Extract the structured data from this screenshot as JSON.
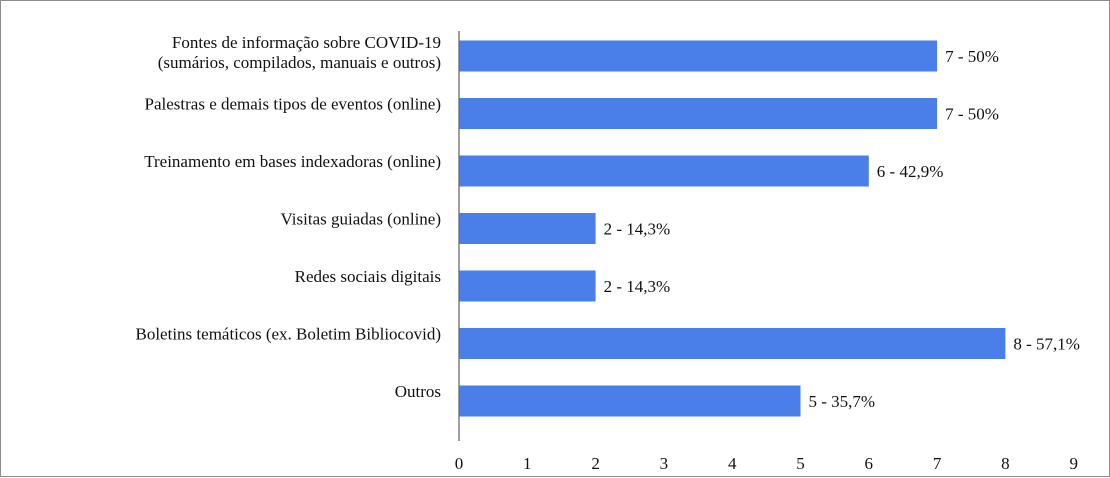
{
  "chart_data": {
    "type": "bar",
    "orientation": "horizontal",
    "categories": [
      [
        "Fontes de informação sobre COVID-19",
        "(sumários, compilados, manuais e outros)"
      ],
      [
        "Palestras e demais tipos de eventos (online)"
      ],
      [
        "Treinamento em bases indexadoras (online)"
      ],
      [
        "Visitas guiadas (online)"
      ],
      [
        "Redes sociais digitais"
      ],
      [
        "Boletins temáticos (ex. Boletim Bibliocovid)"
      ],
      [
        "Outros"
      ]
    ],
    "values": [
      7,
      7,
      6,
      2,
      2,
      8,
      5
    ],
    "data_labels": [
      "7 - 50%",
      "7 - 50%",
      "6 - 42,9%",
      "2 - 14,3%",
      "2 - 14,3%",
      "8 - 57,1%",
      "5 - 35,7%"
    ],
    "xlim": [
      0,
      9
    ],
    "xticks": [
      "0",
      "1",
      "2",
      "3",
      "4",
      "5",
      "6",
      "7",
      "8",
      "9"
    ],
    "grid": false,
    "legend": "none",
    "bar_color": "#4a7ee8",
    "title": "",
    "xlabel": "",
    "ylabel": ""
  }
}
